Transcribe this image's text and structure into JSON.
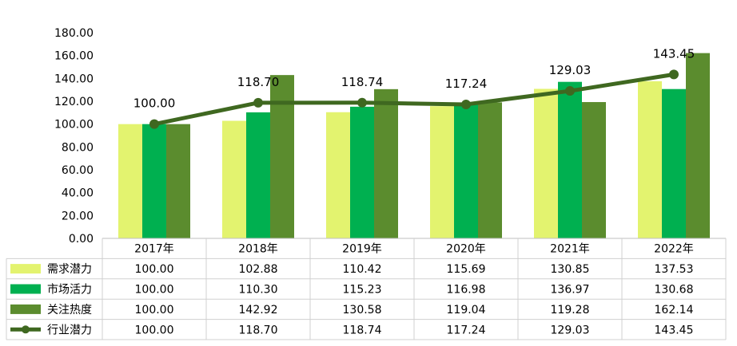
{
  "chart_data": {
    "type": "bar",
    "categories": [
      "2017年",
      "2018年",
      "2019年",
      "2020年",
      "2021年",
      "2022年"
    ],
    "y_ticks": [
      "0.00",
      "20.00",
      "40.00",
      "60.00",
      "80.00",
      "100.00",
      "120.00",
      "140.00",
      "160.00",
      "180.00"
    ],
    "ylim": [
      0,
      180
    ],
    "grid": false,
    "legend_position": "bottom, inside data table",
    "series": [
      {
        "name": "需求潜力",
        "kind": "bar",
        "color": "#e3f36f",
        "values": [
          100.0,
          102.88,
          110.42,
          115.69,
          130.85,
          137.53
        ],
        "labels": [
          "100.00",
          "102.88",
          "110.42",
          "115.69",
          "130.85",
          "137.53"
        ]
      },
      {
        "name": "市场活力",
        "kind": "bar",
        "color": "#00b050",
        "values": [
          100.0,
          110.3,
          115.23,
          116.98,
          136.97,
          130.68
        ],
        "labels": [
          "100.00",
          "110.30",
          "115.23",
          "116.98",
          "136.97",
          "130.68"
        ]
      },
      {
        "name": "关注热度",
        "kind": "bar",
        "color": "#5b8c2e",
        "values": [
          100.0,
          142.92,
          130.58,
          119.04,
          119.28,
          162.14
        ],
        "labels": [
          "100.00",
          "142.92",
          "130.58",
          "119.04",
          "119.28",
          "162.14"
        ]
      },
      {
        "name": "行业潜力",
        "kind": "line",
        "color": "#3f6820",
        "values": [
          100.0,
          118.7,
          118.74,
          117.24,
          129.03,
          143.45
        ],
        "labels": [
          "100.00",
          "118.70",
          "118.74",
          "117.24",
          "129.03",
          "143.45"
        ]
      }
    ]
  }
}
